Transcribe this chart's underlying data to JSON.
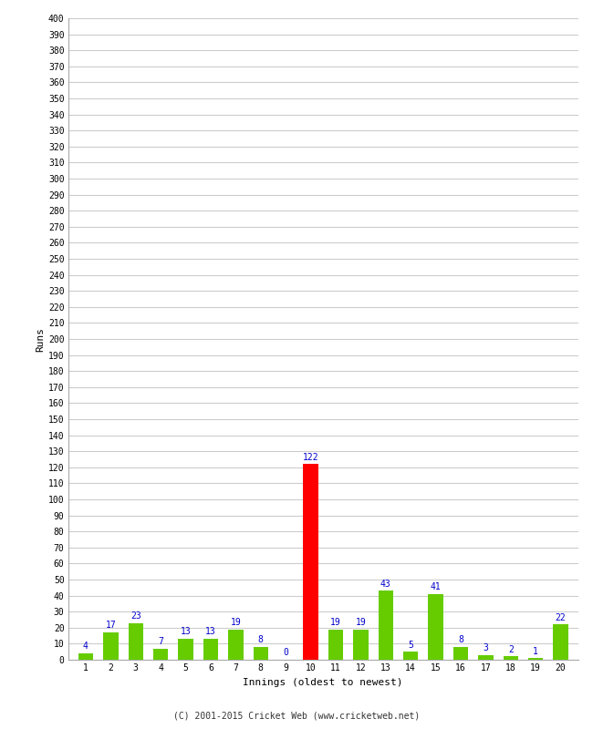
{
  "xlabel": "Innings (oldest to newest)",
  "ylabel": "Runs",
  "categories": [
    1,
    2,
    3,
    4,
    5,
    6,
    7,
    8,
    9,
    10,
    11,
    12,
    13,
    14,
    15,
    16,
    17,
    18,
    19,
    20
  ],
  "values": [
    4,
    17,
    23,
    7,
    13,
    13,
    19,
    8,
    0,
    122,
    19,
    19,
    43,
    5,
    41,
    8,
    3,
    2,
    1,
    22
  ],
  "bar_colors": [
    "#66cc00",
    "#66cc00",
    "#66cc00",
    "#66cc00",
    "#66cc00",
    "#66cc00",
    "#66cc00",
    "#66cc00",
    "#66cc00",
    "#ff0000",
    "#66cc00",
    "#66cc00",
    "#66cc00",
    "#66cc00",
    "#66cc00",
    "#66cc00",
    "#66cc00",
    "#66cc00",
    "#66cc00",
    "#66cc00"
  ],
  "label_color": "#0000cc",
  "ytick_step": 10,
  "ymax": 400,
  "background_color": "#ffffff",
  "grid_color": "#cccccc",
  "footer": "(C) 2001-2015 Cricket Web (www.cricketweb.net)",
  "bar_width": 0.6,
  "label_fontsize": 7,
  "tick_fontsize": 7,
  "axis_label_fontsize": 8,
  "footer_fontsize": 7
}
